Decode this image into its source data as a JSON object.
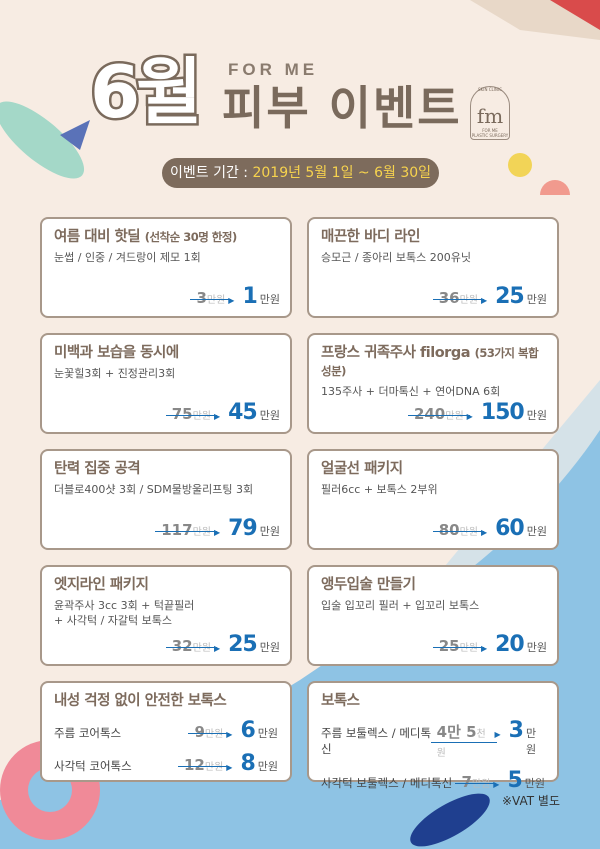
{
  "header": {
    "month": "6월",
    "brand": "FOR ME",
    "title": "피부 이벤트",
    "period_label": "이벤트 기간 :",
    "period_dates": "2019년 5월 1일 ~ 6월 30일"
  },
  "logo": {
    "mark": "fm",
    "top": "SKIN CLINIC",
    "name": "FOR ME",
    "bottom": "PLASTIC SURGERY"
  },
  "unit": "만원",
  "colors": {
    "title": "#7d6b5d",
    "price": "#1a6fb5",
    "bg": "#f7ece3",
    "sea": "#8ec3e4"
  },
  "cards": [
    {
      "title": "여름 대비 핫딜",
      "note": "(선착순 30명 한정)",
      "desc": "눈썹 / 인중 / 겨드랑이 제모 1회",
      "old": "3",
      "new": "1"
    },
    {
      "title": "매끈한 바디 라인",
      "desc": "승모근 / 종아리 보톡스 200유닛",
      "old": "36",
      "new": "25"
    },
    {
      "title": "미백과 보습을 동시에",
      "desc": "눈꽃힐3회 + 진정관리3회",
      "old": "75",
      "new": "45"
    },
    {
      "title": "프랑스 귀족주사 filorga",
      "note": "(53가지 복합성분)",
      "desc": "135주사 + 더마톡신 + 연어DNA 6회",
      "old": "240",
      "new": "150"
    },
    {
      "title": "탄력 집중 공격",
      "desc": "더블로400샷 3회 / SDM물방울리프팅 3회",
      "old": "117",
      "new": "79"
    },
    {
      "title": "얼굴선 패키지",
      "desc": "필러6cc + 보톡스 2부위",
      "old": "80",
      "new": "60"
    },
    {
      "title": "엣지라인 패키지",
      "desc": "윤곽주사 3cc 3회 + 턱끝필러\n+ 사각턱 / 자갈턱 보톡스",
      "old": "32",
      "new": "25"
    },
    {
      "title": "앵두입술 만들기",
      "desc": "입술 입꼬리 필러 + 입꼬리 보톡스",
      "old": "25",
      "new": "20"
    }
  ],
  "botox_cards": [
    {
      "title": "내성 걱정 없이 안전한 보톡스",
      "rows": [
        {
          "name": "주름 코어톡스",
          "old": "9",
          "old_unit": "만원",
          "new": "6"
        },
        {
          "name": "사각턱 코어톡스",
          "old": "12",
          "old_unit": "만원",
          "new": "8"
        }
      ]
    },
    {
      "title": "보톡스",
      "rows": [
        {
          "name": "주름 보툴렉스 / 메디톡신",
          "old": "4만 5",
          "old_unit": "천원",
          "new": "3"
        },
        {
          "name": "사각턱 보툴렉스 / 메디톡신",
          "old": "7",
          "old_unit": "만원",
          "new": "5"
        }
      ]
    }
  ],
  "footer": {
    "vat": "※VAT 별도"
  }
}
